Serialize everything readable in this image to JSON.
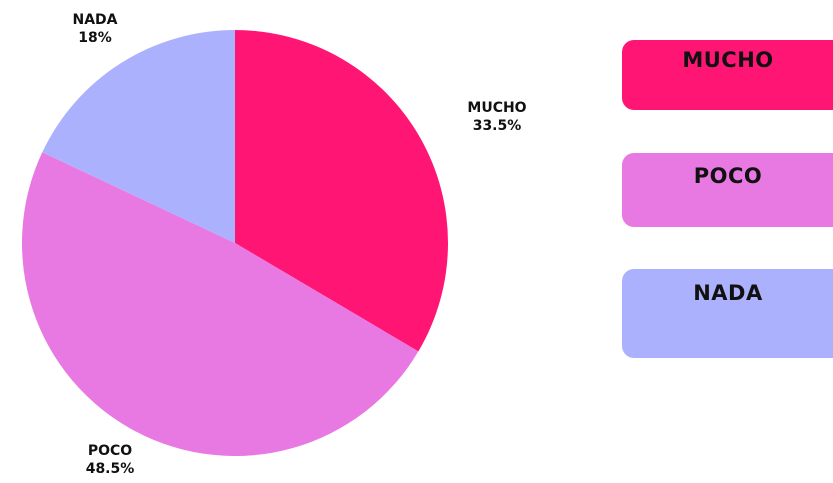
{
  "chart_data": {
    "type": "pie",
    "categories": [
      "MUCHO",
      "POCO",
      "NADA"
    ],
    "values": [
      33.5,
      48.5,
      18
    ],
    "value_labels": [
      "33.5%",
      "48.5%",
      "18%"
    ],
    "colors": [
      "#ff1674",
      "#e878e2",
      "#acb1fd"
    ],
    "start_angle_deg": 0,
    "direction": "clockwise",
    "title": "",
    "legend": "right",
    "legend_labels": [
      "MUCHO",
      "POCO",
      "NADA"
    ]
  }
}
